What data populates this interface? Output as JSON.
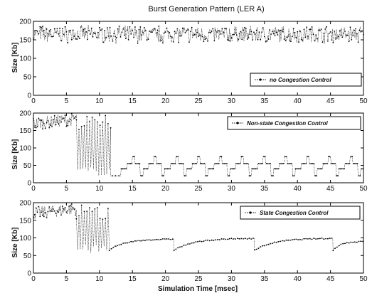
{
  "chart_data": [
    {
      "type": "line",
      "title": "Burst Generation Pattern (LER A)",
      "xlabel": "",
      "ylabel": "Size [Kb]",
      "xlim": [
        0,
        50
      ],
      "ylim": [
        0,
        200
      ],
      "xticks": [
        0,
        5,
        10,
        15,
        20,
        25,
        30,
        35,
        40,
        45,
        50
      ],
      "yticks": [
        0,
        50,
        100,
        150,
        200
      ],
      "grid": false,
      "legend_position": "bottom-right",
      "series": [
        {
          "name": "no Congestion Control",
          "style": "dotted line with dot markers",
          "x": [
            0,
            50
          ],
          "description_value_range": [
            130,
            200
          ],
          "mean_value": 165
        }
      ]
    },
    {
      "type": "line",
      "title": "",
      "xlabel": "",
      "ylabel": "Size [Kb]",
      "xlim": [
        0,
        50
      ],
      "ylim": [
        0,
        200
      ],
      "xticks": [
        0,
        5,
        10,
        15,
        20,
        25,
        30,
        35,
        40,
        45,
        50
      ],
      "yticks": [
        0,
        50,
        100,
        150,
        200
      ],
      "grid": false,
      "legend_position": "top-right",
      "series": [
        {
          "name": "Non-state Congestion Control",
          "style": "dotted line with dot markers",
          "phases": [
            {
              "x_range": [
                0,
                6.5
              ],
              "value_range": [
                145,
                200
              ],
              "mean_value": 170
            },
            {
              "x_range": [
                6.5,
                11.7
              ],
              "oscillation": [
                20,
                195
              ]
            },
            {
              "x_range": [
                11.7,
                13.3
              ],
              "value": 20
            },
            {
              "x_range": [
                13.3,
                50
              ],
              "sawtooth_levels": [
                20,
                40,
                55,
                75
              ],
              "period": 3.3
            }
          ]
        }
      ]
    },
    {
      "type": "line",
      "title": "",
      "xlabel": "Simulation Time [msec]",
      "ylabel": "Size [Kb]",
      "xlim": [
        0,
        50
      ],
      "ylim": [
        0,
        200
      ],
      "xticks": [
        0,
        5,
        10,
        15,
        20,
        25,
        30,
        35,
        40,
        45,
        50
      ],
      "yticks": [
        0,
        50,
        100,
        150,
        200
      ],
      "grid": false,
      "legend_position": "top-right",
      "series": [
        {
          "name": "State Congestion Control",
          "style": "dotted line with dot markers",
          "phases": [
            {
              "x_range": [
                0,
                6.5
              ],
              "value_range": [
                145,
                200
              ],
              "mean_value": 170
            },
            {
              "x_range": [
                6.5,
                11.5
              ],
              "oscillation": [
                55,
                195
              ]
            },
            {
              "x_range": [
                11.5,
                50
              ],
              "recovery_cycles": [
                {
                  "start": 11.5,
                  "end": 21.3,
                  "from": 65,
                  "to": 97
                },
                {
                  "start": 21.3,
                  "end": 33.5,
                  "from": 65,
                  "to": 99
                },
                {
                  "start": 33.5,
                  "end": 45.4,
                  "from": 65,
                  "to": 99
                },
                {
                  "start": 45.4,
                  "end": 50,
                  "from": 65,
                  "to": 90
                }
              ]
            }
          ]
        }
      ]
    }
  ]
}
